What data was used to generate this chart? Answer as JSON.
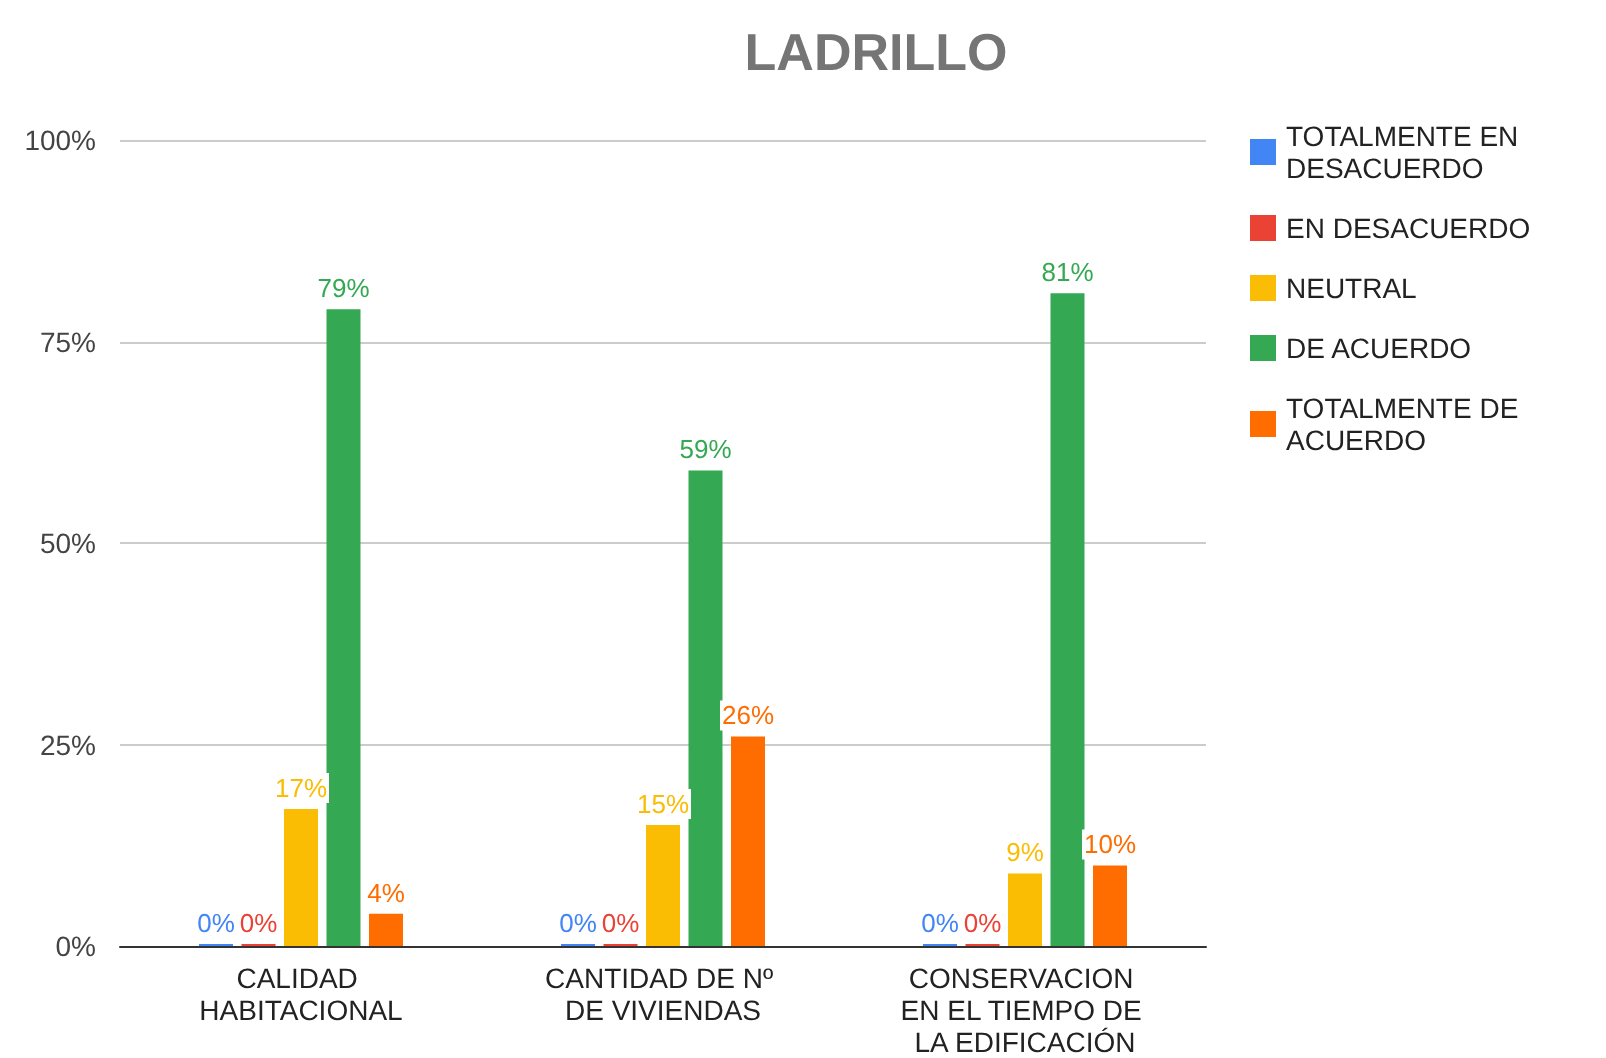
{
  "chart_data": {
    "type": "bar",
    "title": "LADRILLO",
    "categories": [
      "CALIDAD HABITACIONAL",
      "CANTIDAD DE Nº DE VIVIENDAS",
      "CONSERVACION EN EL TIEMPO DE LA EDIFICACIÓN"
    ],
    "series": [
      {
        "name": "TOTALMENTE EN DESACUERDO",
        "color": "#4285f4",
        "values": [
          0,
          0,
          0
        ],
        "value_labels": [
          "0%",
          "0%",
          "0%"
        ]
      },
      {
        "name": "EN DESACUERDO",
        "color": "#ea4335",
        "values": [
          0,
          0,
          0
        ],
        "value_labels": [
          "0%",
          "0%",
          "0%"
        ]
      },
      {
        "name": "NEUTRAL",
        "color": "#fbbc04",
        "values": [
          17,
          15,
          9
        ],
        "value_labels": [
          "17%",
          "15%",
          "9%"
        ]
      },
      {
        "name": "DE ACUERDO",
        "color": "#34a853",
        "values": [
          79,
          59,
          81
        ],
        "value_labels": [
          "79%",
          "59%",
          "81%"
        ]
      },
      {
        "name": "TOTALMENTE DE ACUERDO",
        "color": "#ff6d01",
        "values": [
          4,
          26,
          10
        ],
        "value_labels": [
          "4%",
          "26%",
          "10%"
        ]
      }
    ],
    "ylim": [
      0,
      100
    ],
    "yticks": [
      {
        "value": 0,
        "label": "0%"
      },
      {
        "value": 25,
        "label": "25%"
      },
      {
        "value": 50,
        "label": "50%"
      },
      {
        "value": 75,
        "label": "75%"
      },
      {
        "value": 100,
        "label": "100%"
      }
    ],
    "grid": "y",
    "legend": "right"
  }
}
